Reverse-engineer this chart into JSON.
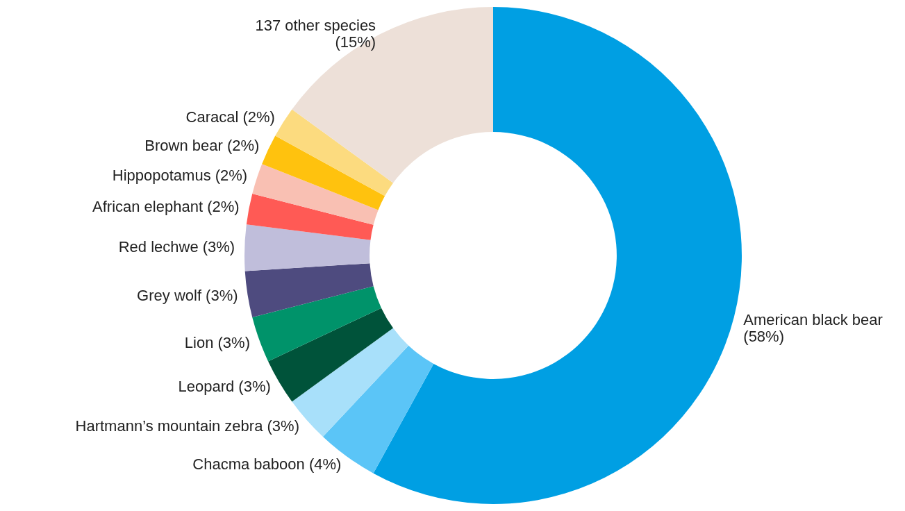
{
  "chart_data": {
    "type": "donut",
    "categories": [
      "American black bear",
      "Chacma baboon",
      "Hartmann’s mountain zebra",
      "Leopard",
      "Lion",
      "Grey wolf",
      "Red lechwe",
      "African elephant",
      "Hippopotamus",
      "Brown bear",
      "Caracal",
      "137 other species"
    ],
    "values": [
      58,
      4,
      3,
      3,
      3,
      3,
      3,
      2,
      2,
      2,
      2,
      15
    ],
    "value_labels": [
      "(58%)",
      "(4%)",
      "(3%)",
      "(3%)",
      "(3%)",
      "(3%)",
      "(3%)",
      "(2%)",
      "(2%)",
      "(2%)",
      "(2%)",
      "(15%)"
    ],
    "colors": [
      "#009fe3",
      "#5bc5f7",
      "#a8e0fa",
      "#00533a",
      "#00936a",
      "#4e4b7f",
      "#c0bedb",
      "#ff5a55",
      "#f9c0b3",
      "#ffc20e",
      "#fcdb7f",
      "#ede0d8"
    ]
  }
}
